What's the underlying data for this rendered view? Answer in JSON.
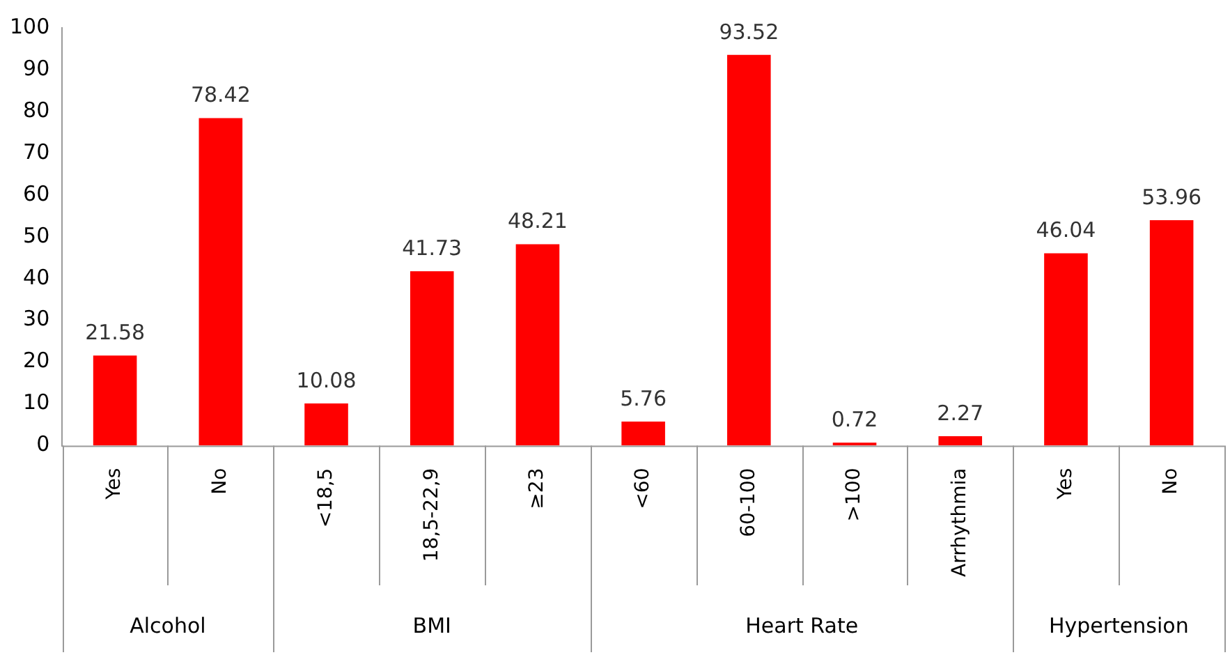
{
  "chart_data": {
    "type": "bar",
    "categories": [
      "Yes",
      "No",
      "<18,5",
      "18,5-22,9",
      "≥23",
      "<60",
      "60-100",
      ">100",
      "Arrhythmia",
      "Yes",
      "No"
    ],
    "values": [
      21.58,
      78.42,
      10.08,
      41.73,
      48.21,
      5.76,
      93.52,
      0.72,
      2.27,
      46.04,
      53.96
    ],
    "color": "#ff0000",
    "ylim": [
      0,
      100
    ],
    "yticks": [
      0,
      10,
      20,
      30,
      40,
      50,
      60,
      70,
      80,
      90,
      100
    ],
    "grid": false,
    "legend": false,
    "data_labels": true,
    "annotations": [
      "Alcohol",
      "BMI",
      "Heart Rate",
      "Hypertension"
    ]
  }
}
